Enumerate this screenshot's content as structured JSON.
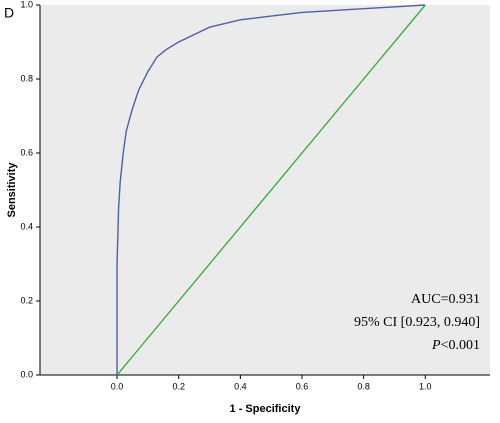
{
  "chart_data": {
    "type": "line",
    "panel_label": "D",
    "x_label": "1 - Specificity",
    "y_label": "Sensitivity",
    "xlim": [
      -0.25,
      1.21
    ],
    "ylim": [
      0,
      1
    ],
    "xticks": [
      {
        "value": 0,
        "label": "0.0"
      },
      0.2,
      0.4,
      0.6,
      0.8,
      {
        "value": 1,
        "label": "1.0"
      }
    ],
    "yticks": [
      {
        "value": 0,
        "label": "0.0"
      },
      0.2,
      0.4,
      0.6,
      0.8,
      {
        "value": 1,
        "label": "1.0"
      }
    ],
    "series": [
      {
        "color": "#5060a8",
        "x": [
          0,
          0,
          0.005,
          0.01,
          0.02,
          0.03,
          0.05,
          0.07,
          0.1,
          0.13,
          0.16,
          0.2,
          0.25,
          0.3,
          0.4,
          0.5,
          0.6,
          0.8,
          1.0
        ],
        "values": [
          0,
          0.3,
          0.45,
          0.52,
          0.6,
          0.66,
          0.72,
          0.77,
          0.82,
          0.86,
          0.88,
          0.9,
          0.92,
          0.94,
          0.96,
          0.97,
          0.98,
          0.99,
          1.0
        ]
      },
      {
        "color": "#3cb043",
        "x": [
          0,
          1
        ],
        "values": [
          0,
          1
        ]
      }
    ],
    "annotations": [
      "AUC=0.931",
      "95% CI [0.923, 0.940]",
      {
        "italic": "P",
        "text": "<0.001"
      }
    ]
  }
}
